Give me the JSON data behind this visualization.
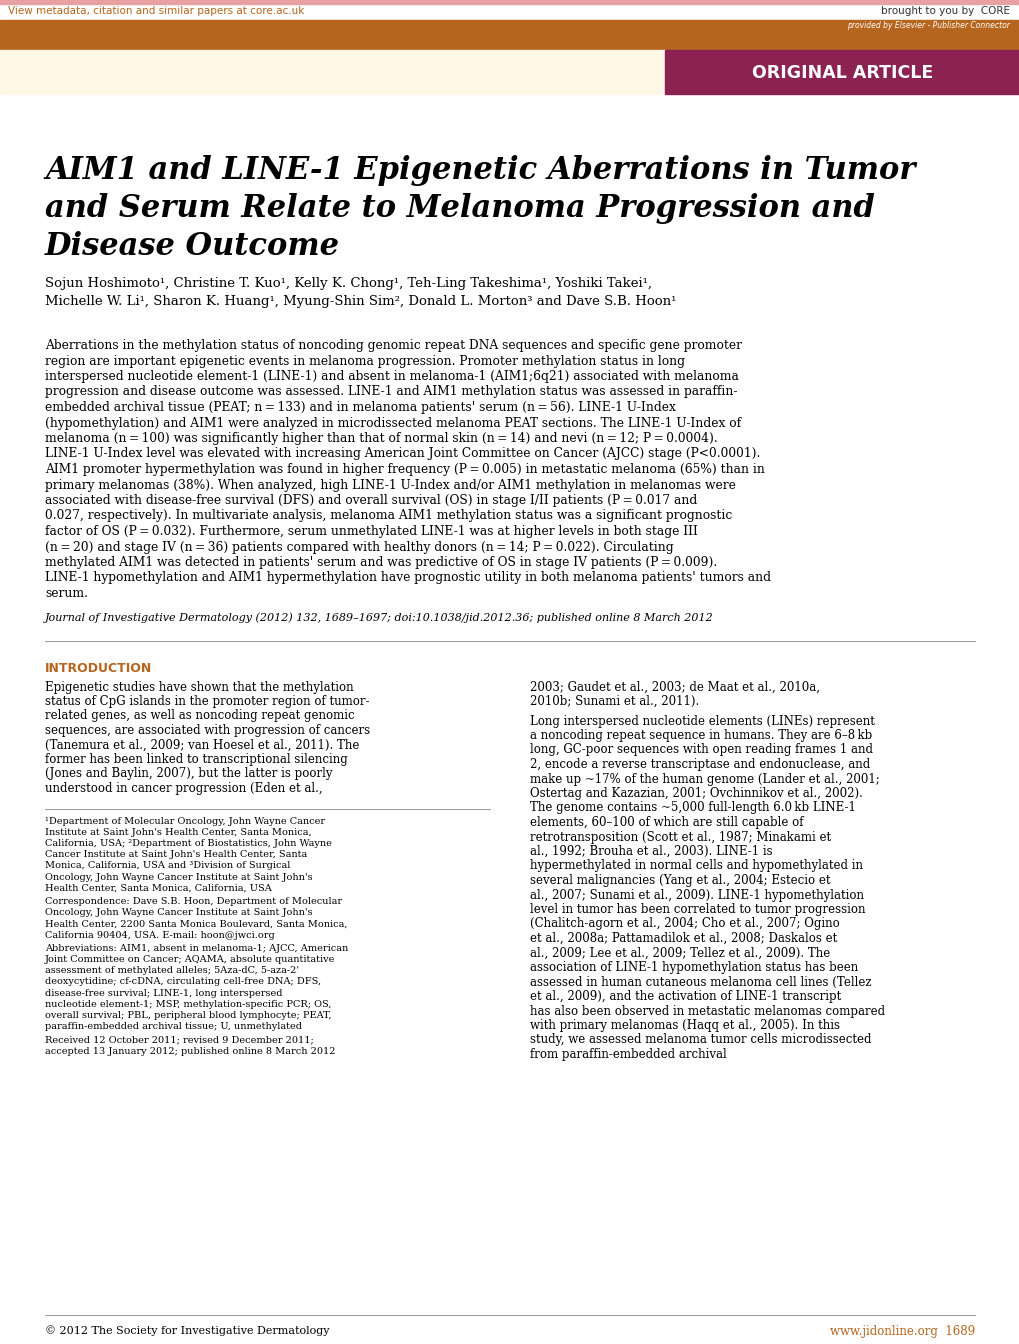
{
  "header_bar_color": "#B5651D",
  "original_article_bg": "#8B2252",
  "original_article_text": "ORIGINAL ARTICLE",
  "provided_by_text": "provided by Elsevier - Publisher Connector",
  "core_text": "brought to you by  CORE",
  "view_metadata_text": "View metadata, citation and similar papers at core.ac.uk",
  "page_bg": "#FFFFFF",
  "header_cream_bg": "#FFF8E7",
  "title_line1": "AIM1 and LINE-1 Epigenetic Aberrations in Tumor",
  "title_line2": "and Serum Relate to Melanoma Progression and",
  "title_line3": "Disease Outcome",
  "authors_line1": "Sojun Hoshimoto¹, Christine T. Kuo¹, Kelly K. Chong¹, Teh-Ling Takeshima¹, Yoshiki Takei¹,",
  "authors_line2": "Michelle W. Li¹, Sharon K. Huang¹, Myung-Shin Sim², Donald L. Morton³ and Dave S.B. Hoon¹",
  "abstract_text": "Aberrations in the methylation status of noncoding genomic repeat DNA sequences and specific gene promoter region are important epigenetic events in melanoma progression. Promoter methylation status in long interspersed nucleotide element-1 (LINE-1) and absent in melanoma-1 (AIM1;6q21) associated with melanoma progression and disease outcome was assessed. LINE-1 and AIM1 methylation status was assessed in paraffin-embedded archival tissue (PEAT; n = 133) and in melanoma patients' serum (n = 56). LINE-1 U-Index (hypomethylation) and AIM1 were analyzed in microdissected melanoma PEAT sections. The LINE-1 U-Index of melanoma (n = 100) was significantly higher than that of normal skin (n = 14) and nevi (n = 12; P = 0.0004). LINE-1 U-Index level was elevated with increasing American Joint Committee on Cancer (AJCC) stage (P<0.0001). AIM1 promoter hypermethylation was found in higher frequency (P = 0.005) in metastatic melanoma (65%) than in primary melanomas (38%). When analyzed, high LINE-1 U-Index and/or AIM1 methylation in melanomas were associated with disease-free survival (DFS) and overall survival (OS) in stage I/II patients (P = 0.017 and 0.027, respectively). In multivariate analysis, melanoma AIM1 methylation status was a significant prognostic factor of OS (P = 0.032). Furthermore, serum unmethylated LINE-1 was at higher levels in both stage III (n = 20) and stage IV (n = 36) patients compared with healthy donors (n = 14; P = 0.022). Circulating methylated AIM1 was detected in patients' serum and was predictive of OS in stage IV patients (P = 0.009). LINE-1 hypomethylation and AIM1 hypermethylation have prognostic utility in both melanoma patients' tumors and serum.",
  "journal_ref": "Journal of Investigative Dermatology (2012) 132, 1689–1697; doi:10.1038/jid.2012.36; published online 8 March 2012",
  "intro_heading": "INTRODUCTION",
  "intro_col1": "Epigenetic studies have shown that the methylation status of CpG islands in the promoter region of tumor-related genes, as well as noncoding repeat genomic sequences, are associated with progression of cancers (Tanemura et al., 2009; van Hoesel et al., 2011). The former has been linked to transcriptional silencing (Jones and Baylin, 2007), but the latter is poorly understood in cancer progression (Eden et al.,",
  "intro_col2": "2003; Gaudet et al., 2003; de Maat et al., 2010a, 2010b; Sunami et al., 2011).\n\nLong interspersed nucleotide elements (LINEs) represent a noncoding repeat sequence in humans. They are 6–8 kb long, GC-poor sequences with open reading frames 1 and 2, encode a reverse transcriptase and endonuclease, and make up ~17% of the human genome (Lander et al., 2001; Ostertag and Kazazian, 2001; Ovchinnikov et al., 2002). The genome contains ~5,000 full-length 6.0 kb LINE-1 elements, 60–100 of which are still capable of retrotransposition (Scott et al., 1987; Minakami et al., 1992; Brouha et al., 2003). LINE-1 is hypermethylated in normal cells and hypomethylated in several malignancies (Yang et al., 2004; Estecio et al., 2007; Sunami et al., 2009). LINE-1 hypomethylation level in tumor has been correlated to tumor progression (Chalitch-agorn et al., 2004; Cho et al., 2007; Ogino et al., 2008a; Pattamadilok et al., 2008; Daskalos et al., 2009; Lee et al., 2009; Tellez et al., 2009). The association of LINE-1 hypomethylation status has been assessed in human cutaneous melanoma cell lines (Tellez et al., 2009), and the activation of LINE-1 transcript has also been observed in metastatic melanomas compared with primary melanomas (Haqq et al., 2005). In this study, we assessed melanoma tumor cells microdissected from paraffin-embedded archival",
  "footnote1": "¹Department of Molecular Oncology, John Wayne Cancer Institute at Saint John's Health Center, Santa Monica, California, USA; ²Department of Biostatistics, John Wayne Cancer Institute at Saint John's Health Center, Santa Monica, California, USA and ³Division of Surgical Oncology, John Wayne Cancer Institute at Saint John's Health Center, Santa Monica, California, USA",
  "footnote2": "Correspondence: Dave S.B. Hoon, Department of Molecular Oncology, John Wayne Cancer Institute at Saint John's Health Center, 2200 Santa Monica Boulevard, Santa Monica, California 90404, USA. E-mail: hoon@jwci.org",
  "footnote3": "Abbreviations: AIM1, absent in melanoma-1; AJCC, American Joint Committee on Cancer; AQAMA, absolute quantitative assessment of methylated alleles; 5Aza-dC, 5-aza-2' deoxycytidine; cf-cDNA, circulating cell-free DNA; DFS, disease-free survival; LINE-1, long interspersed nucleotide element-1; MSP, methylation-specific PCR; OS, overall survival; PBL, peripheral blood lymphocyte; PEAT, paraffin-embedded archival tissue; U, unmethylated",
  "footnote4": "Received 12 October 2011; revised 9 December 2011; accepted 13 January 2012; published online 8 March 2012",
  "bottom_left": "© 2012 The Society for Investigative Dermatology",
  "bottom_right": "www.jidonline.org  1689",
  "intro_color": "#B5651D",
  "link_color": "#B5651D"
}
